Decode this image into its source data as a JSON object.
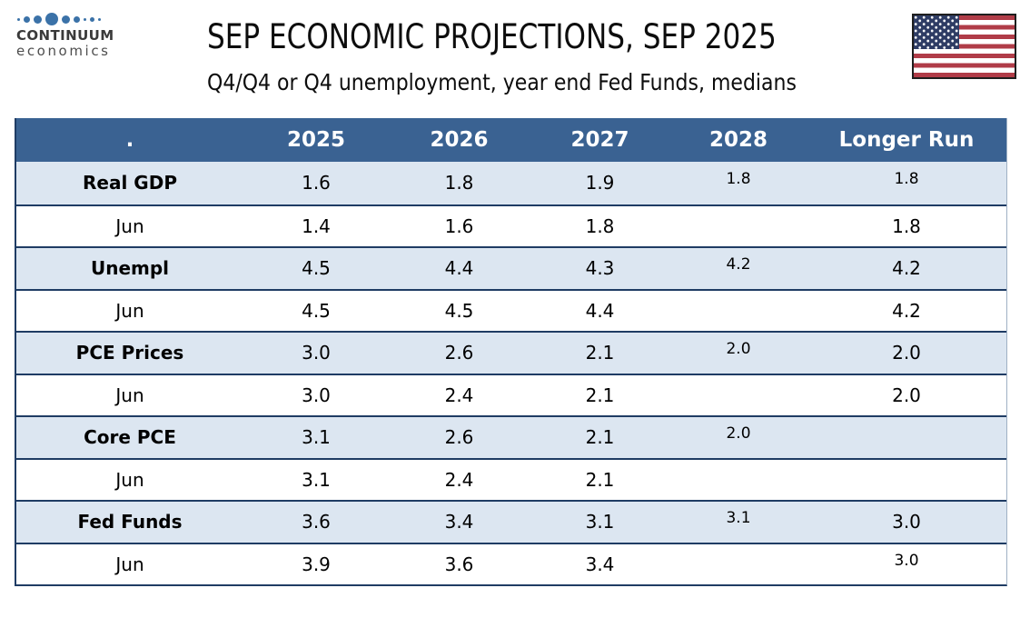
{
  "brand": {
    "name": "CONTINUUM",
    "tagline": "economics",
    "dot_color": "#3B72A8"
  },
  "header": {
    "title": "SEP ECONOMIC PROJECTIONS, SEP 2025",
    "subtitle": "Q4/Q4 or Q4 unemployment, year end Fed Funds, medians",
    "flag": "us-flag"
  },
  "colors": {
    "table_header_bg": "#3A6292",
    "category_row_bg": "#DCE6F1",
    "separator": "#1F3C64",
    "flag_red": "#B03C48",
    "flag_canton": "#2E3C64"
  },
  "chart_data": {
    "type": "table",
    "title": "SEP ECONOMIC PROJECTIONS, SEP 2025",
    "subtitle": "Q4/Q4 or Q4 unemployment, year end Fed Funds, medians",
    "columns": [
      ".",
      "2025",
      "2026",
      "2027",
      "2028",
      "Longer Run"
    ],
    "rows": [
      {
        "label": "Real GDP",
        "type": "category",
        "values": [
          "1.6",
          "1.8",
          "1.9",
          "1.8",
          "1.8"
        ],
        "raised": [
          3,
          4
        ]
      },
      {
        "label": "Jun",
        "type": "jun",
        "values": [
          "1.4",
          "1.6",
          "1.8",
          "",
          "1.8"
        ],
        "raised": []
      },
      {
        "label": "Unempl",
        "type": "category",
        "values": [
          "4.5",
          "4.4",
          "4.3",
          "4.2",
          "4.2"
        ],
        "raised": [
          3
        ]
      },
      {
        "label": "Jun",
        "type": "jun",
        "values": [
          "4.5",
          "4.5",
          "4.4",
          "",
          "4.2"
        ],
        "raised": []
      },
      {
        "label": "PCE Prices",
        "type": "category",
        "values": [
          "3.0",
          "2.6",
          "2.1",
          "2.0",
          "2.0"
        ],
        "raised": [
          3
        ]
      },
      {
        "label": "Jun",
        "type": "jun",
        "values": [
          "3.0",
          "2.4",
          "2.1",
          "",
          "2.0"
        ],
        "raised": []
      },
      {
        "label": "Core PCE",
        "type": "category",
        "values": [
          "3.1",
          "2.6",
          "2.1",
          "2.0",
          ""
        ],
        "raised": [
          3
        ]
      },
      {
        "label": "Jun",
        "type": "jun",
        "values": [
          "3.1",
          "2.4",
          "2.1",
          "",
          ""
        ],
        "raised": []
      },
      {
        "label": "Fed Funds",
        "type": "category",
        "values": [
          "3.6",
          "3.4",
          "3.1",
          "3.1",
          "3.0"
        ],
        "raised": [
          3
        ]
      },
      {
        "label": "Jun",
        "type": "jun",
        "values": [
          "3.9",
          "3.6",
          "3.4",
          "",
          "3.0"
        ],
        "raised": [
          4
        ]
      }
    ]
  }
}
